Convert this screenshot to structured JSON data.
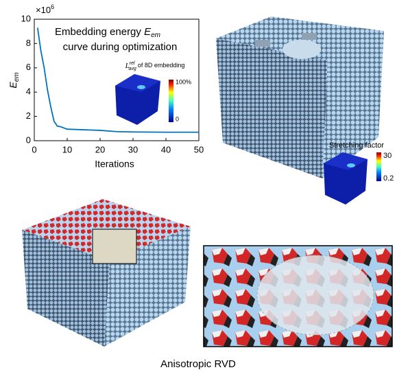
{
  "chart_data": {
    "type": "line",
    "title_line1": "Embedding energy",
    "title_symbol": "E",
    "title_subscript": "em",
    "title_line2": "curve during optimization",
    "xlabel": "Iterations",
    "ylabel": "E",
    "ylabel_subscript": "em",
    "y_multiplier": "×10",
    "y_multiplier_exponent": "6",
    "x": [
      1,
      2,
      3,
      4,
      5,
      6,
      7,
      8,
      10,
      15,
      20,
      25,
      30,
      40,
      50
    ],
    "series": [
      {
        "color": "#0072bd",
        "values": [
          9.3,
          7.4,
          6.0,
          4.2,
          2.8,
          1.6,
          1.2,
          1.15,
          0.95,
          0.9,
          0.85,
          0.75,
          0.72,
          0.7,
          0.7
        ]
      }
    ],
    "xlim": [
      0,
      50
    ],
    "xticks": [
      0,
      10,
      20,
      30,
      40,
      50
    ],
    "ylim": [
      0,
      10
    ],
    "yticks": [
      0,
      2,
      4,
      6,
      8,
      10
    ],
    "grid": false
  },
  "inset_embedding": {
    "symbol": "L",
    "superscript": "rel",
    "subscript": "avg",
    "text": "of 8D embedding",
    "colorbar_max": "100%",
    "colorbar_min": "0"
  },
  "inset_stretching": {
    "title": "Stretching factor",
    "colorbar_max": "30",
    "colorbar_min": "0.2"
  },
  "caption": "Anisotropic RVD"
}
